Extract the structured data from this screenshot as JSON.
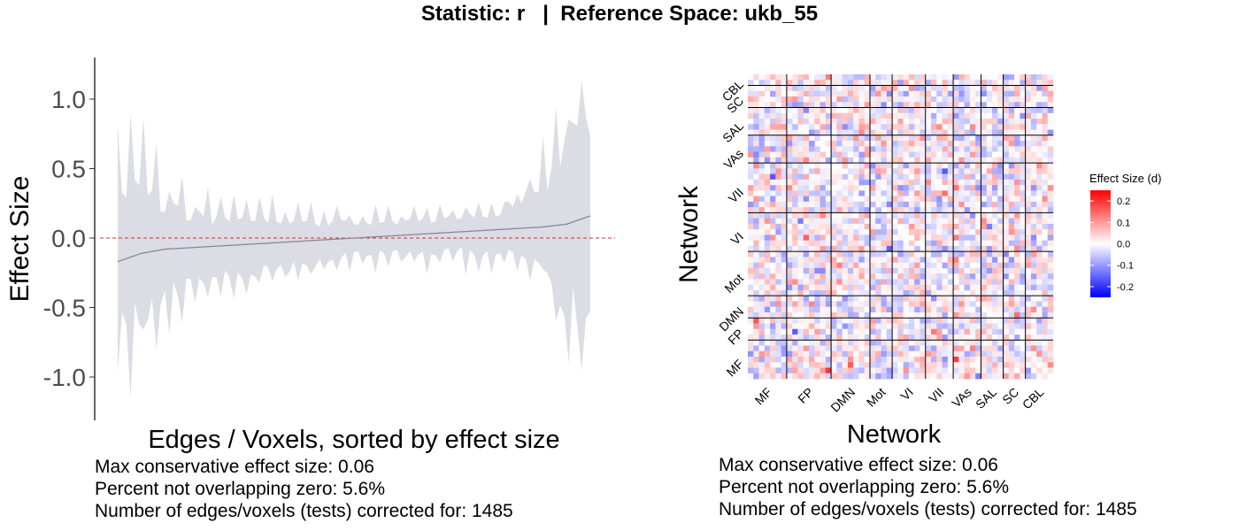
{
  "title": "Statistic: r   |  Reference Space: ukb_55",
  "left_plot": {
    "xlabel": "Edges / Voxels, sorted by effect size",
    "ylabel": "Effect Size",
    "yticks": [
      "1.0",
      "0.5",
      "0.0",
      "-0.5",
      "-1.0"
    ],
    "stats": [
      "Max conservative effect size: 0.06",
      "Percent not overlapping zero: 5.6%",
      "Number of edges/voxels (tests) corrected for: 1485"
    ]
  },
  "right_plot": {
    "xlabel": "Network",
    "ylabel": "Network",
    "networks_x": [
      "MF",
      "FP",
      "DMN",
      "Mot",
      "VI",
      "VII",
      "VAs",
      "SAL",
      "SC",
      "CBL"
    ],
    "networks_y": [
      "CBL",
      "SC",
      "SAL",
      "VAs",
      "VII",
      "VI",
      "Mot",
      "DMN",
      "FP",
      "MF"
    ],
    "legend_title": "Effect Size (d)",
    "legend_ticks": [
      "0.2",
      "0.1",
      "0.0",
      "-0.1",
      "-0.2"
    ],
    "stats": [
      "Max conservative effect size: 0.06",
      "Percent not overlapping zero: 5.6%",
      "Number of edges/voxels (tests) corrected for: 1485"
    ]
  },
  "colors": {
    "band": "#dcdce4",
    "line": "#8a8599",
    "zero_line": "#c0392b",
    "heat_low": "#0000ff",
    "heat_mid": "#ffffff",
    "heat_high": "#ff0000"
  },
  "chart_data": [
    {
      "type": "area",
      "title": "",
      "xlabel": "Edges / Voxels, sorted by effect size",
      "ylabel": "Effect Size",
      "ylim": [
        -1.3,
        1.3
      ],
      "x": [
        0,
        5,
        10,
        20,
        30,
        40,
        50,
        60,
        70,
        80,
        90,
        95,
        100
      ],
      "estimate": [
        -0.17,
        -0.11,
        -0.08,
        -0.06,
        -0.04,
        -0.02,
        0.0,
        0.02,
        0.04,
        0.06,
        0.08,
        0.1,
        0.16
      ],
      "upper": [
        0.47,
        0.42,
        0.28,
        0.18,
        0.16,
        0.14,
        0.13,
        0.14,
        0.16,
        0.2,
        0.45,
        0.75,
        1.1
      ],
      "lower": [
        -0.81,
        -0.65,
        -0.45,
        -0.34,
        -0.28,
        -0.22,
        -0.16,
        -0.14,
        -0.13,
        -0.13,
        -0.2,
        -0.6,
        -0.8
      ],
      "hline": 0.0,
      "grid": false
    },
    {
      "type": "heatmap",
      "title": "",
      "xlabel": "Network",
      "ylabel": "Network",
      "categories_x": [
        "MF",
        "FP",
        "DMN",
        "Mot",
        "VI",
        "VII",
        "VAs",
        "SAL",
        "SC",
        "CBL"
      ],
      "categories_y": [
        "CBL",
        "SC",
        "SAL",
        "VAs",
        "VII",
        "VI",
        "Mot",
        "DMN",
        "FP",
        "MF"
      ],
      "value_range": [
        -0.25,
        0.25
      ],
      "legend": "right"
    }
  ]
}
